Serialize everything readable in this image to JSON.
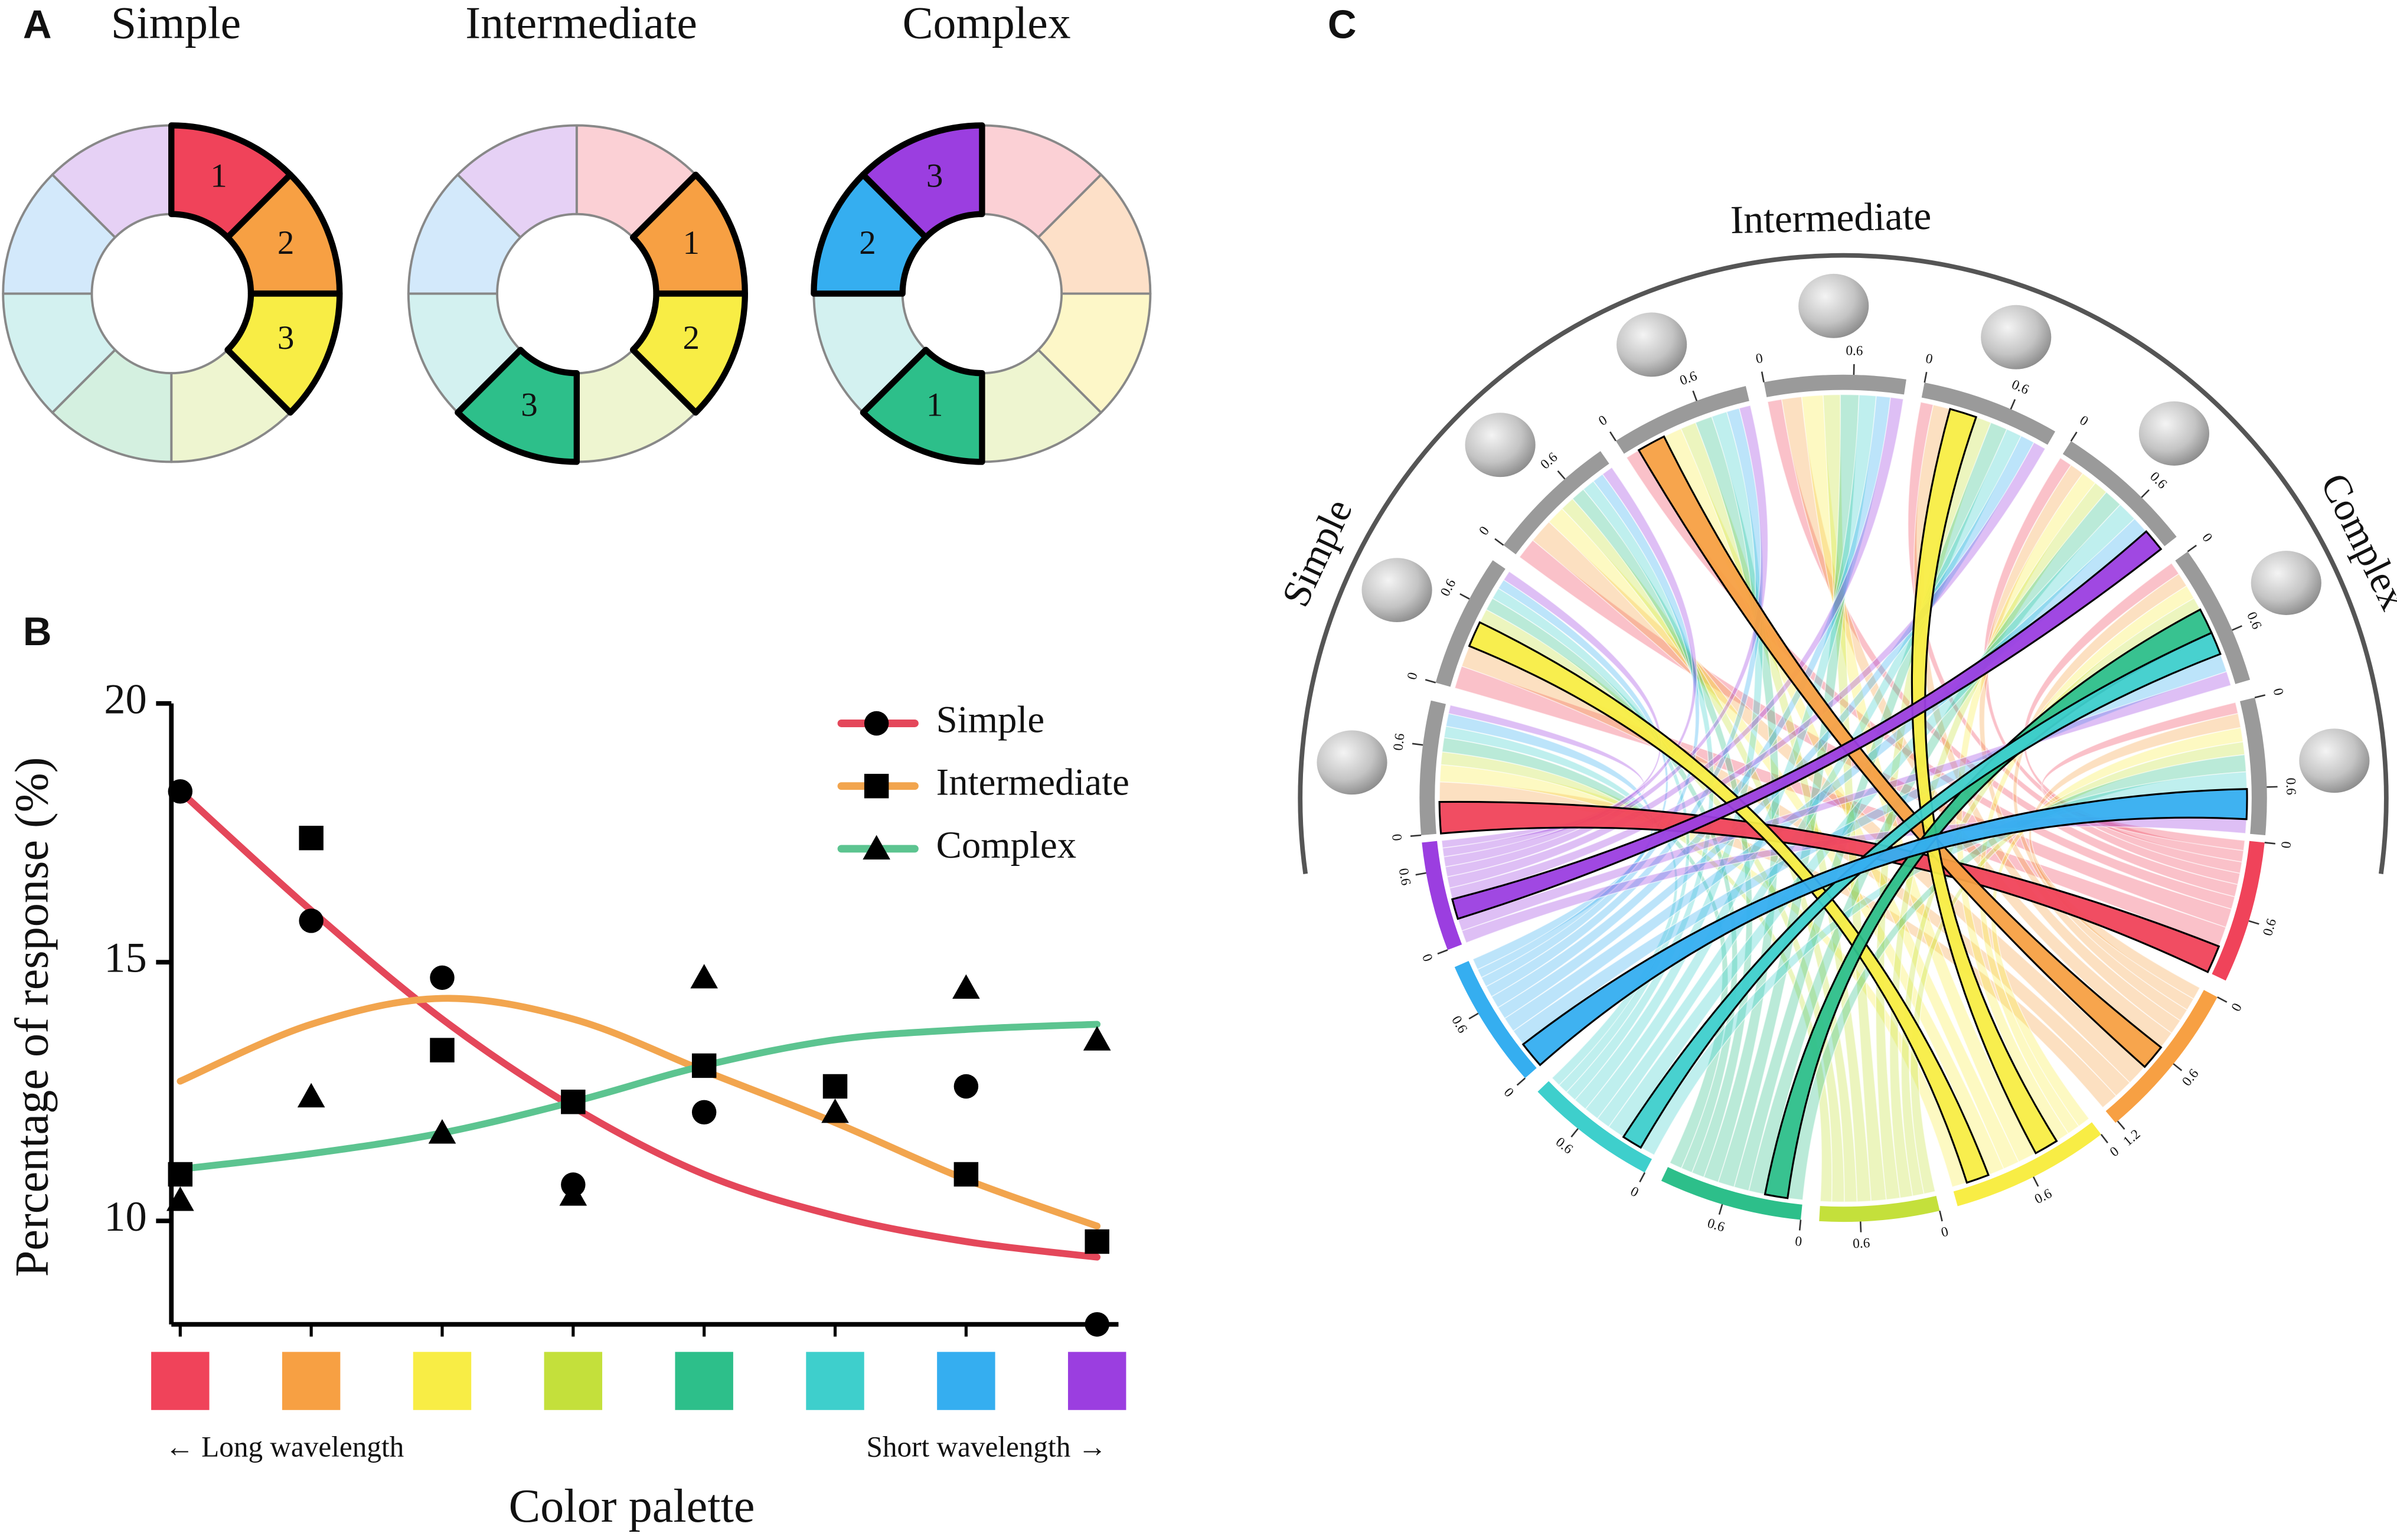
{
  "panel_labels": [
    "A",
    "B",
    "C"
  ],
  "palette": [
    "#f0435a",
    "#f7a043",
    "#f8ed45",
    "#c4e03b",
    "#2dbf8a",
    "#3ecfcc",
    "#35aef0",
    "#9b3ee0"
  ],
  "palette_light": [
    "#fbd0d5",
    "#fde0c8",
    "#fdf7c8",
    "#eef5d0",
    "#d4f0e0",
    "#d3f1f0",
    "#d3e9fb",
    "#e6d1f5"
  ],
  "chart_data": [
    {
      "type": "donut",
      "title": "Simple",
      "ranks": [
        "1",
        "2",
        "3",
        null,
        null,
        null,
        null,
        null
      ]
    },
    {
      "type": "donut",
      "title": "Intermediate",
      "ranks": [
        null,
        "1",
        "2",
        null,
        "3",
        null,
        null,
        null
      ]
    },
    {
      "type": "donut",
      "title": "Complex",
      "ranks": [
        null,
        null,
        null,
        null,
        "1",
        null,
        "2",
        "3"
      ]
    },
    {
      "type": "scatter",
      "ylabel": "Percentage of response (%)",
      "xlabel": "Color palette",
      "x_left_note": "← Long wavelength",
      "x_right_note": "Short wavelength →",
      "categories": [
        null,
        null,
        null,
        null,
        null,
        null,
        null,
        null
      ],
      "ylim": [
        8,
        20
      ],
      "yticks": [
        10,
        15,
        20
      ],
      "series": [
        {
          "name": "Simple",
          "color": "#e4475a",
          "marker": "circle",
          "values": [
            18.3,
            15.8,
            14.7,
            10.7,
            12.1,
            null,
            12.6,
            8.0
          ],
          "fit": [
            18.3,
            16.0,
            13.9,
            12.2,
            10.9,
            10.1,
            9.6,
            9.3
          ]
        },
        {
          "name": "Intermediate",
          "color": "#f2a54e",
          "marker": "square",
          "values": [
            10.9,
            17.4,
            13.3,
            12.3,
            13.0,
            12.6,
            10.9,
            9.6
          ],
          "fit": [
            12.7,
            13.8,
            14.3,
            13.9,
            12.9,
            11.9,
            10.8,
            9.9
          ]
        },
        {
          "name": "Complex",
          "color": "#5cc490",
          "marker": "triangle",
          "values": [
            10.4,
            12.4,
            11.7,
            10.5,
            14.7,
            12.1,
            14.5,
            13.5
          ],
          "fit": [
            11.0,
            11.3,
            11.7,
            12.3,
            13.0,
            13.5,
            13.7,
            13.8
          ]
        }
      ]
    },
    {
      "type": "chord",
      "groups": [
        "Simple",
        "Intermediate",
        "Complex"
      ],
      "group_sizes": [
        3,
        3,
        3
      ],
      "matrix": [
        [
          0.22,
          0.14,
          0.12,
          0.09,
          0.1,
          0.08,
          0.09,
          0.06
        ],
        [
          0.16,
          0.15,
          0.18,
          0.1,
          0.09,
          0.08,
          0.07,
          0.07
        ],
        [
          0.15,
          0.17,
          0.13,
          0.1,
          0.1,
          0.09,
          0.08,
          0.08
        ],
        [
          0.1,
          0.2,
          0.13,
          0.11,
          0.12,
          0.11,
          0.09,
          0.08
        ],
        [
          0.1,
          0.14,
          0.15,
          0.12,
          0.13,
          0.12,
          0.1,
          0.09
        ],
        [
          0.09,
          0.12,
          0.19,
          0.11,
          0.12,
          0.11,
          0.1,
          0.09
        ],
        [
          0.09,
          0.1,
          0.11,
          0.1,
          0.13,
          0.14,
          0.12,
          0.16
        ],
        [
          0.09,
          0.1,
          0.1,
          0.09,
          0.18,
          0.16,
          0.13,
          0.1
        ],
        [
          0.08,
          0.1,
          0.1,
          0.09,
          0.12,
          0.12,
          0.21,
          0.1
        ]
      ],
      "outlined": [
        [
          0,
          0
        ],
        [
          3,
          1
        ],
        [
          5,
          2
        ],
        [
          1,
          2
        ],
        [
          6,
          7
        ],
        [
          7,
          5
        ],
        [
          7,
          4
        ],
        [
          8,
          6
        ]
      ],
      "row_ticks": [
        [
          0,
          0.6
        ],
        [
          0,
          0.6
        ],
        [
          0,
          0.6
        ],
        [
          0,
          0.6
        ],
        [
          0,
          0.6
        ],
        [
          0,
          0.6
        ],
        [
          0,
          0.6
        ],
        [
          0,
          0.6
        ],
        [
          0,
          0.6
        ]
      ],
      "col_ticks": [
        [
          0,
          0.6
        ],
        [
          0,
          0.6,
          1.2
        ],
        [
          0,
          0.6
        ],
        [
          0,
          0.6
        ],
        [
          0,
          0.6
        ],
        [
          0,
          0.6
        ],
        [
          0,
          0.6
        ],
        [
          0,
          0.6
        ]
      ]
    }
  ]
}
